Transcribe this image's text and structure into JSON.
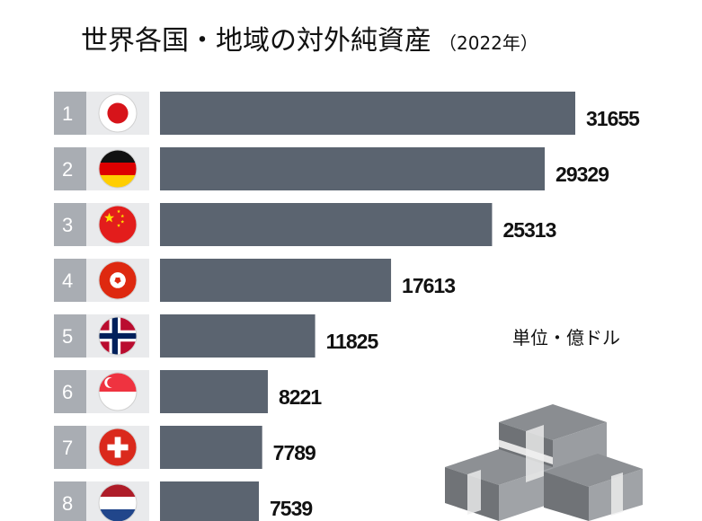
{
  "chart_data": {
    "type": "bar",
    "title": "世界各国・地域の対外純資産",
    "subtitle": "（2022年）",
    "unit_label": "単位・億ドル",
    "xlabel": "",
    "ylabel": "",
    "xlim": [
      0,
      31655
    ],
    "grid": false,
    "legend": "none",
    "categories": [
      "1",
      "2",
      "3",
      "4",
      "5",
      "6",
      "7",
      "8"
    ],
    "values": [
      31655,
      29329,
      25313,
      17613,
      11825,
      8221,
      7789,
      7539
    ],
    "value_labels": [
      "31655",
      "29329",
      "25313",
      "17613",
      "11825",
      "8221",
      "7789",
      "7539"
    ],
    "flags": [
      "japan-flag",
      "germany-flag",
      "china-flag",
      "hong-kong-flag",
      "norway-flag",
      "singapore-flag",
      "switzerland-flag",
      "netherlands-flag"
    ],
    "colors": {
      "bar": "#5b6470",
      "rank_box": "#a9adb3",
      "flag_box": "#e9eaec"
    }
  },
  "decoration": {
    "icon": "money-stack-icon"
  }
}
